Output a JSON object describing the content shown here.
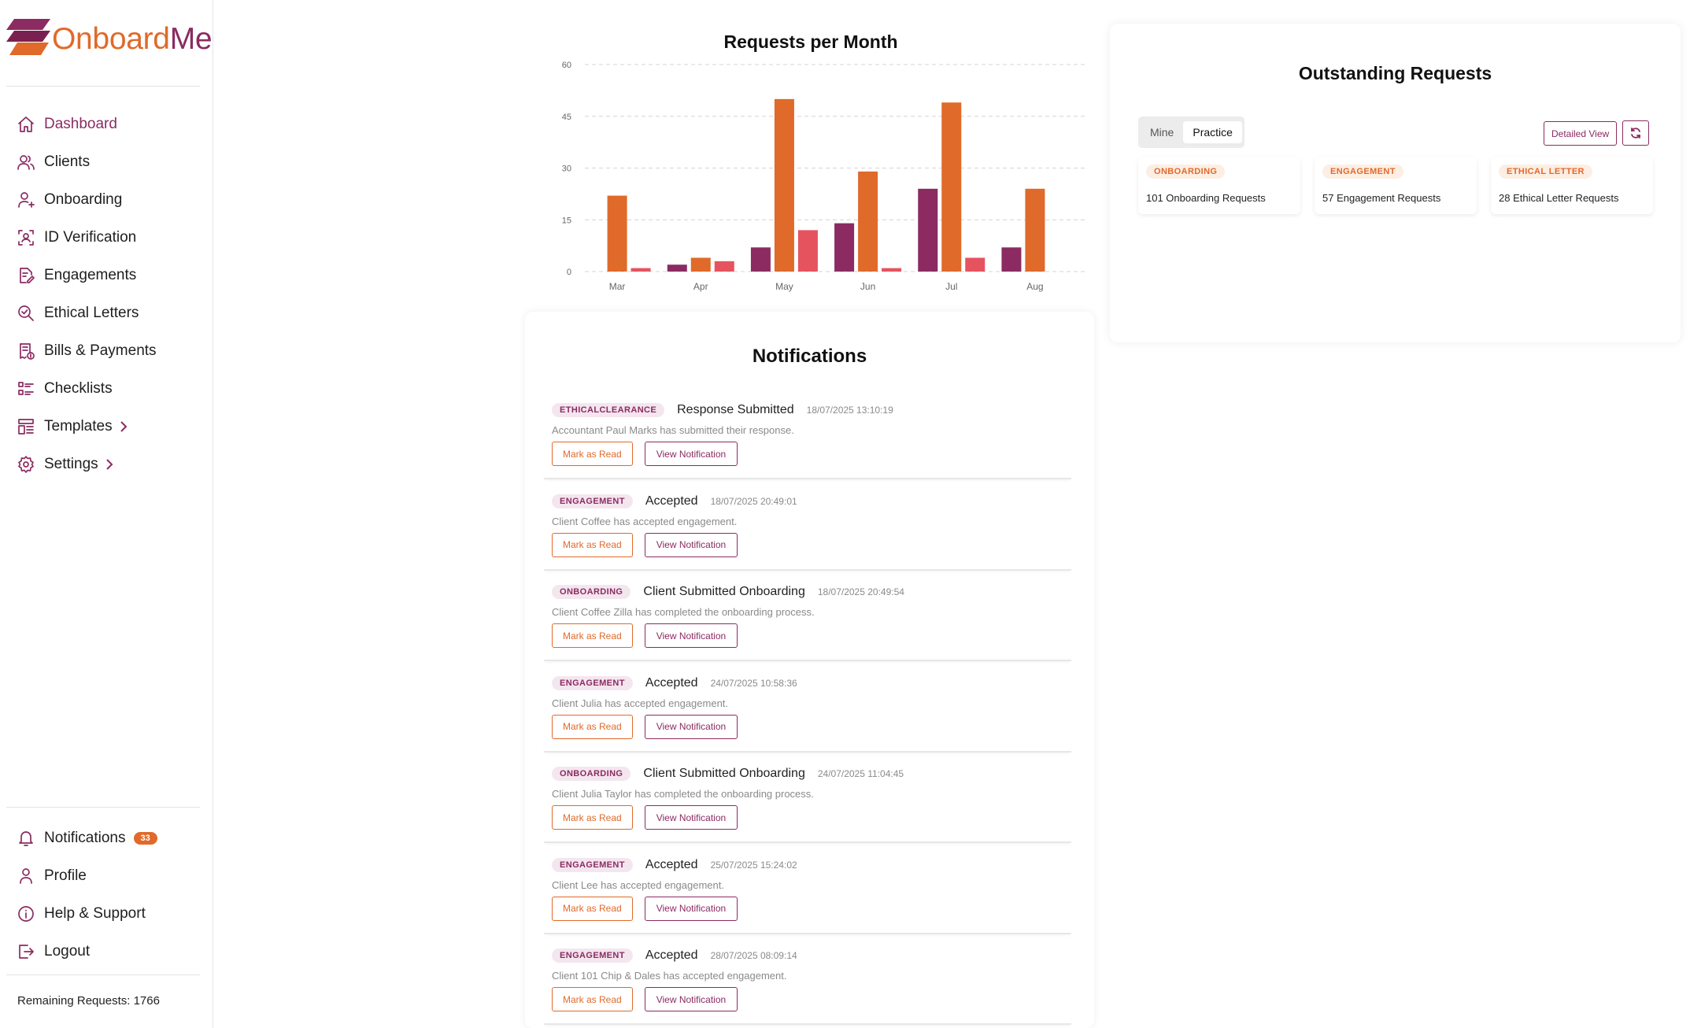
{
  "brand": {
    "name_part1": "Onboard",
    "name_part2": "Me",
    "accent": "#8b2b62",
    "secondary": "#e06a2a",
    "tertiary": "#e5535f"
  },
  "sidebar": {
    "items": [
      {
        "label": "Dashboard",
        "icon": "home-icon",
        "active": true
      },
      {
        "label": "Clients",
        "icon": "users-icon"
      },
      {
        "label": "Onboarding",
        "icon": "user-plus-icon"
      },
      {
        "label": "ID Verification",
        "icon": "face-scan-icon"
      },
      {
        "label": "Engagements",
        "icon": "document-pen-icon"
      },
      {
        "label": "Ethical Letters",
        "icon": "search-check-icon"
      },
      {
        "label": "Bills & Payments",
        "icon": "receipt-icon"
      },
      {
        "label": "Checklists",
        "icon": "checklist-icon"
      },
      {
        "label": "Templates",
        "icon": "template-icon",
        "expandable": true
      },
      {
        "label": "Settings",
        "icon": "gear-icon",
        "expandable": true
      }
    ],
    "bottom": [
      {
        "label": "Notifications",
        "icon": "bell-icon",
        "badge": "33"
      },
      {
        "label": "Profile",
        "icon": "user-icon"
      },
      {
        "label": "Help & Support",
        "icon": "info-icon"
      },
      {
        "label": "Logout",
        "icon": "logout-icon"
      }
    ],
    "remaining": "Remaining Requests: 1766"
  },
  "chart_data": {
    "type": "bar",
    "title": "Requests per Month",
    "categories": [
      "Mar",
      "Apr",
      "May",
      "Jun",
      "Jul",
      "Aug"
    ],
    "series": [
      {
        "color": "#8b2b62",
        "values": [
          0,
          2,
          7,
          14,
          24,
          7
        ]
      },
      {
        "color": "#e06a2a",
        "values": [
          22,
          4,
          50,
          29,
          49,
          24
        ]
      },
      {
        "color": "#e5535f",
        "values": [
          1,
          3,
          12,
          1,
          4,
          0
        ]
      }
    ],
    "yticks": [
      "0",
      "15",
      "30",
      "45",
      "60"
    ],
    "ylim": [
      0,
      60
    ],
    "grid": true,
    "xlabel": "",
    "ylabel": ""
  },
  "notifications": {
    "title": "Notifications",
    "mark_label": "Mark as Read",
    "view_label": "View Notification",
    "items": [
      {
        "tag": "ETHICALCLEARANCE",
        "title": "Response Submitted",
        "time": "18/07/2025 13:10:19",
        "desc": "Accountant Paul Marks has submitted their response."
      },
      {
        "tag": "ENGAGEMENT",
        "title": "Accepted",
        "time": "18/07/2025 20:49:01",
        "desc": "Client Coffee has accepted engagement."
      },
      {
        "tag": "ONBOARDING",
        "title": "Client Submitted Onboarding",
        "time": "18/07/2025 20:49:54",
        "desc": "Client Coffee Zilla has completed the onboarding process."
      },
      {
        "tag": "ENGAGEMENT",
        "title": "Accepted",
        "time": "24/07/2025 10:58:36",
        "desc": "Client Julia has accepted engagement."
      },
      {
        "tag": "ONBOARDING",
        "title": "Client Submitted Onboarding",
        "time": "24/07/2025 11:04:45",
        "desc": "Client Julia Taylor has completed the onboarding process."
      },
      {
        "tag": "ENGAGEMENT",
        "title": "Accepted",
        "time": "25/07/2025 15:24:02",
        "desc": "Client Lee has accepted engagement."
      },
      {
        "tag": "ENGAGEMENT",
        "title": "Accepted",
        "time": "28/07/2025 08:09:14",
        "desc": "Client 101 Chip & Dales has accepted engagement."
      }
    ]
  },
  "outstanding": {
    "title": "Outstanding Requests",
    "toggle": [
      "Mine",
      "Practice"
    ],
    "selected": "Practice",
    "detail_label": "Detailed View",
    "refresh_icon": "refresh-icon",
    "cards": [
      {
        "tag": "ONBOARDING",
        "text": "101 Onboarding Requests"
      },
      {
        "tag": "ENGAGEMENT",
        "text": "57 Engagement Requests"
      },
      {
        "tag": "ETHICAL LETTER",
        "text": "28 Ethical Letter Requests"
      }
    ]
  }
}
